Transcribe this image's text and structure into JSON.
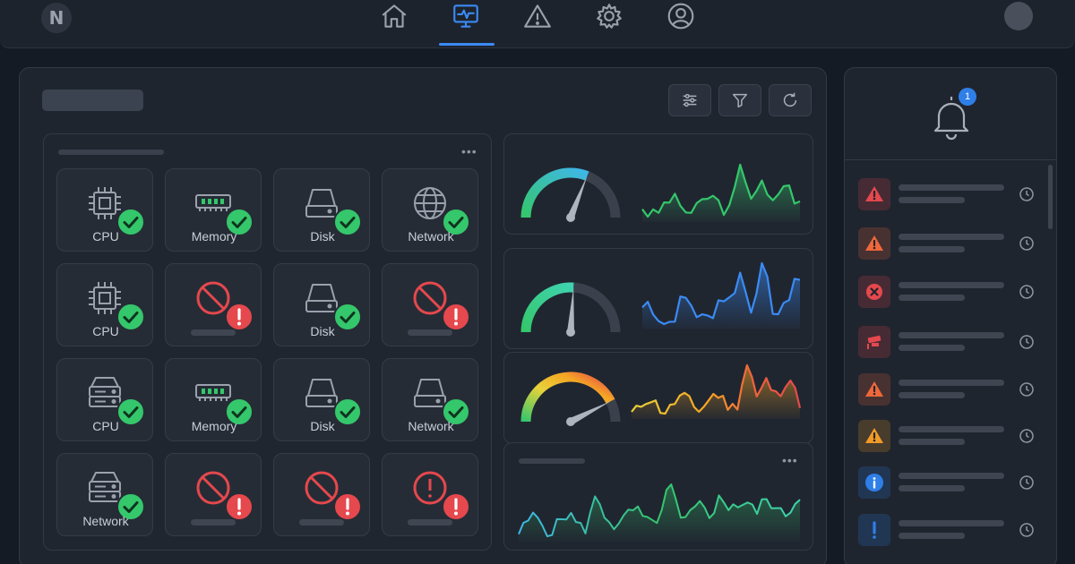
{
  "app": {
    "logo_letter": "N"
  },
  "nav": {
    "items": [
      {
        "name": "home",
        "icon": "home-icon",
        "active": false
      },
      {
        "name": "monitoring",
        "icon": "monitor-pulse-icon",
        "active": true
      },
      {
        "name": "alerts",
        "icon": "warning-triangle-icon",
        "active": false
      },
      {
        "name": "settings",
        "icon": "gear-icon",
        "active": false
      },
      {
        "name": "profile",
        "icon": "user-icon",
        "active": false
      }
    ]
  },
  "toolbar": {
    "buttons": [
      "sliders-icon",
      "filter-icon",
      "refresh-icon"
    ]
  },
  "status_tiles": [
    {
      "type": "cpu",
      "label": "CPU",
      "status": "ok"
    },
    {
      "type": "memory",
      "label": "Memory",
      "status": "ok"
    },
    {
      "type": "disk",
      "label": "Disk",
      "status": "ok"
    },
    {
      "type": "network",
      "label": "Network",
      "status": "ok"
    },
    {
      "type": "cpu",
      "label": "CPU",
      "status": "ok"
    },
    {
      "type": "blocked",
      "label": "",
      "status": "error"
    },
    {
      "type": "disk",
      "label": "Disk",
      "status": "ok"
    },
    {
      "type": "blocked",
      "label": "",
      "status": "error"
    },
    {
      "type": "server",
      "label": "CPU",
      "status": "ok"
    },
    {
      "type": "memory",
      "label": "Memory",
      "status": "ok"
    },
    {
      "type": "disk",
      "label": "Disk",
      "status": "ok"
    },
    {
      "type": "disk",
      "label": "Network",
      "status": "ok"
    },
    {
      "type": "server",
      "label": "Network",
      "status": "ok"
    },
    {
      "type": "blocked",
      "label": "",
      "status": "error"
    },
    {
      "type": "blocked",
      "label": "",
      "status": "error"
    },
    {
      "type": "alert",
      "label": "",
      "status": "error"
    }
  ],
  "metric_cards": [
    {
      "gauge_level": 0.62,
      "color": "#34c76b",
      "theme": "green"
    },
    {
      "gauge_level": 0.52,
      "color": "#3b8bf5",
      "theme": "blue"
    },
    {
      "gauge_level": 0.85,
      "color": "#f5a524",
      "theme": "heat"
    }
  ],
  "alerts": {
    "badge_count": "1",
    "items": [
      {
        "severity": "critical",
        "icon": "warning-triangle-icon",
        "color": "#e5484d"
      },
      {
        "severity": "high",
        "icon": "warning-triangle-icon",
        "color": "#f0673a"
      },
      {
        "severity": "critical",
        "icon": "close-circle-icon",
        "color": "#e5484d"
      },
      {
        "severity": "critical",
        "icon": "cctv-camera-icon",
        "color": "#e5484d"
      },
      {
        "severity": "high",
        "icon": "warning-triangle-icon",
        "color": "#f0673a"
      },
      {
        "severity": "medium",
        "icon": "warning-triangle-icon",
        "color": "#f29a26"
      },
      {
        "severity": "info",
        "icon": "info-circle-icon",
        "color": "#2f7fe8"
      },
      {
        "severity": "notice",
        "icon": "exclamation-icon",
        "color": "#2f7fe8"
      }
    ]
  }
}
